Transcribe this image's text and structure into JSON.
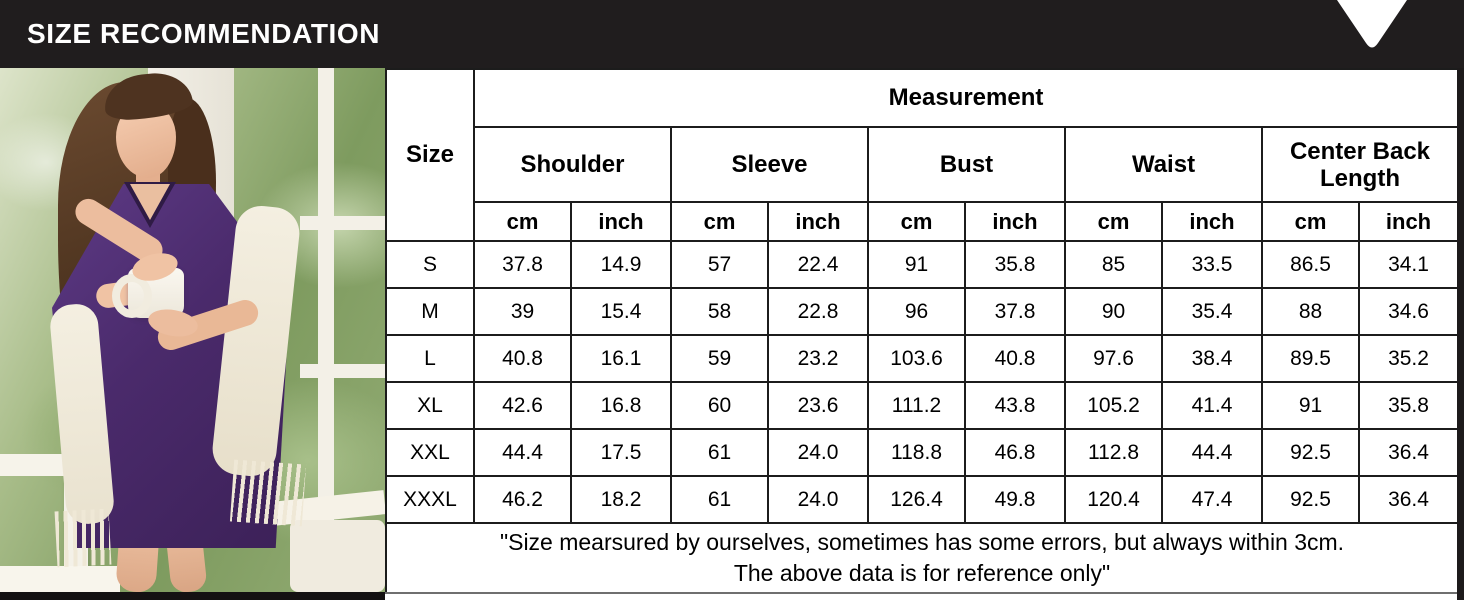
{
  "header": {
    "title": "SIZE RECOMMENDATION"
  },
  "photo": {
    "description": "Model with long brown hair wearing a purple v-neck knit dress with lace trim and a cream shawl, holding a white mug beside a white-framed window with green foliage outside"
  },
  "size_table": {
    "corner_label": "Size",
    "measurement_label": "Measurement",
    "groups": [
      {
        "label": "Shoulder"
      },
      {
        "label": "Sleeve"
      },
      {
        "label": "Bust"
      },
      {
        "label": "Waist"
      },
      {
        "label": "Center Back Length"
      }
    ],
    "unit_labels": {
      "cm": "cm",
      "inch": "inch"
    },
    "rows": [
      {
        "size": "S",
        "values": [
          "37.8",
          "14.9",
          "57",
          "22.4",
          "91",
          "35.8",
          "85",
          "33.5",
          "86.5",
          "34.1"
        ]
      },
      {
        "size": "M",
        "values": [
          "39",
          "15.4",
          "58",
          "22.8",
          "96",
          "37.8",
          "90",
          "35.4",
          "88",
          "34.6"
        ]
      },
      {
        "size": "L",
        "values": [
          "40.8",
          "16.1",
          "59",
          "23.2",
          "103.6",
          "40.8",
          "97.6",
          "38.4",
          "89.5",
          "35.2"
        ]
      },
      {
        "size": "XL",
        "values": [
          "42.6",
          "16.8",
          "60",
          "23.6",
          "111.2",
          "43.8",
          "105.2",
          "41.4",
          "91",
          "35.8"
        ]
      },
      {
        "size": "XXL",
        "values": [
          "44.4",
          "17.5",
          "61",
          "24.0",
          "118.8",
          "46.8",
          "112.8",
          "44.4",
          "92.5",
          "36.4"
        ]
      },
      {
        "size": "XXXL",
        "values": [
          "46.2",
          "18.2",
          "61",
          "24.0",
          "126.4",
          "49.8",
          "120.4",
          "47.4",
          "92.5",
          "36.4"
        ]
      }
    ],
    "note_line1": "\"Size mearsured by ourselves, sometimes has some errors, but always within 3cm.",
    "note_line2": "The above data is for reference only\""
  },
  "colors": {
    "header_bg": "#201d1e",
    "table_border": "#1c1c1c",
    "dress_purple": "#4a2a6b",
    "arrow_white": "#ffffff"
  }
}
